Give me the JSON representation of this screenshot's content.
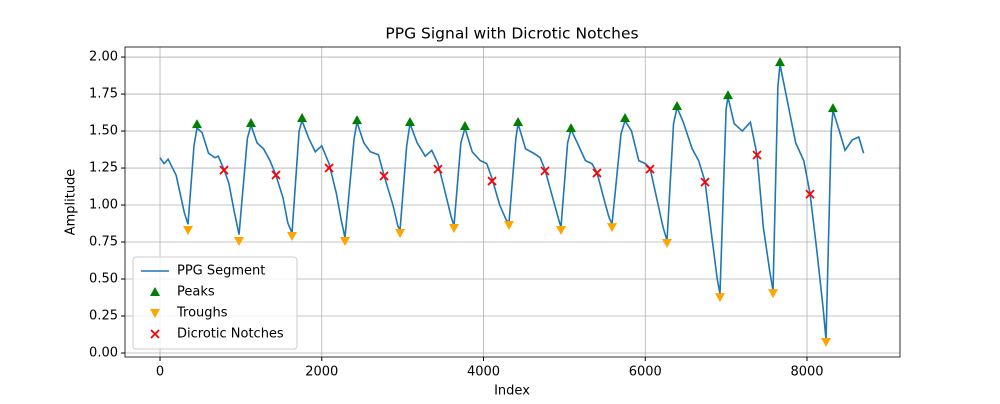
{
  "chart_data": {
    "type": "line",
    "title": "PPG Signal with Dicrotic Notches",
    "x_label": "Index",
    "y_label": "Amplitude",
    "xlim": [
      -433,
      9150
    ],
    "ylim": [
      -0.027,
      2.068
    ],
    "xticks": [
      0,
      2000,
      4000,
      6000,
      8000
    ],
    "yticks": [
      {
        "value": 0,
        "label": "0.00"
      },
      {
        "value": 0.25,
        "label": "0.25"
      },
      {
        "value": 0.5,
        "label": "0.50"
      },
      {
        "value": 0.75,
        "label": "0.75"
      },
      {
        "value": 1,
        "label": "1.00"
      },
      {
        "value": 1.25,
        "label": "1.25"
      },
      {
        "value": 1.5,
        "label": "1.50"
      },
      {
        "value": 1.75,
        "label": "1.75"
      },
      {
        "value": 2,
        "label": "2.00"
      }
    ],
    "grid": true,
    "legend": "lower left",
    "series": [
      {
        "name": "PPG Segment",
        "type": "line",
        "color": "#1f77b4",
        "x": [
          0,
          50,
          100,
          200,
          300,
          346,
          420,
          457,
          520,
          600,
          680,
          720,
          791,
          850,
          920,
          977,
          1080,
          1125,
          1200,
          1280,
          1360,
          1434,
          1520,
          1580,
          1632,
          1720,
          1756,
          1840,
          1920,
          2000,
          2090,
          2180,
          2240,
          2287,
          2400,
          2436,
          2520,
          2600,
          2700,
          2770,
          2880,
          2940,
          2968,
          3050,
          3091,
          3180,
          3280,
          3360,
          3437,
          3520,
          3600,
          3635,
          3720,
          3771,
          3860,
          3960,
          4040,
          4105,
          4200,
          4280,
          4315,
          4400,
          4427,
          4520,
          4620,
          4700,
          4760,
          4840,
          4920,
          4958,
          5040,
          5082,
          5160,
          5260,
          5340,
          5403,
          5480,
          5550,
          5589,
          5700,
          5750,
          5830,
          5920,
          6000,
          6059,
          6140,
          6220,
          6269,
          6350,
          6393,
          6470,
          6580,
          6660,
          6739,
          6820,
          6890,
          6924,
          7000,
          7023,
          7100,
          7200,
          7300,
          7382,
          7460,
          7540,
          7580,
          7640,
          7666,
          7740,
          7860,
          7960,
          8037,
          8120,
          8200,
          8235,
          8300,
          8321,
          8400,
          8470,
          8560,
          8640,
          8700
        ],
        "values": [
          1.32,
          1.28,
          1.31,
          1.2,
          0.95,
          0.87,
          1.4,
          1.52,
          1.49,
          1.35,
          1.32,
          1.33,
          1.24,
          1.15,
          0.95,
          0.8,
          1.45,
          1.54,
          1.42,
          1.38,
          1.3,
          1.2,
          1.05,
          0.88,
          0.81,
          1.5,
          1.57,
          1.45,
          1.36,
          1.4,
          1.28,
          1.08,
          0.9,
          0.78,
          1.45,
          1.56,
          1.42,
          1.36,
          1.34,
          1.2,
          1.0,
          0.86,
          0.83,
          1.4,
          1.55,
          1.42,
          1.33,
          1.37,
          1.28,
          1.1,
          0.92,
          0.86,
          1.42,
          1.52,
          1.36,
          1.3,
          1.28,
          1.18,
          1.0,
          0.9,
          0.88,
          1.45,
          1.55,
          1.38,
          1.35,
          1.32,
          1.24,
          1.08,
          0.92,
          0.85,
          1.42,
          1.51,
          1.42,
          1.3,
          1.28,
          1.22,
          1.06,
          0.92,
          0.87,
          1.48,
          1.57,
          1.5,
          1.3,
          1.28,
          1.25,
          1.05,
          0.85,
          0.76,
          1.55,
          1.66,
          1.56,
          1.38,
          1.3,
          1.16,
          0.8,
          0.5,
          0.4,
          1.65,
          1.73,
          1.55,
          1.5,
          1.56,
          1.34,
          0.85,
          0.55,
          0.42,
          1.8,
          1.95,
          1.75,
          1.42,
          1.3,
          1.08,
          0.7,
          0.3,
          0.09,
          1.5,
          1.64,
          1.5,
          1.37,
          1.44,
          1.46,
          1.35
        ]
      },
      {
        "name": "Peaks",
        "type": "scatter",
        "marker": "triangle-up",
        "color": "green",
        "x": [
          457,
          1125,
          1756,
          2436,
          3091,
          3771,
          4427,
          5082,
          5750,
          6393,
          7023,
          7666,
          8321
        ],
        "values": [
          1.547,
          1.554,
          1.588,
          1.574,
          1.561,
          1.534,
          1.561,
          1.52,
          1.588,
          1.669,
          1.743,
          1.966,
          1.655
        ]
      },
      {
        "name": "Troughs",
        "type": "scatter",
        "marker": "triangle-down",
        "color": "orange",
        "x": [
          346,
          977,
          1632,
          2287,
          2968,
          3635,
          4315,
          4958,
          5589,
          6269,
          6924,
          7580,
          8235
        ],
        "values": [
          0.831,
          0.757,
          0.791,
          0.757,
          0.811,
          0.845,
          0.865,
          0.831,
          0.851,
          0.743,
          0.378,
          0.405,
          0.074
        ]
      },
      {
        "name": "Dicrotic Notches",
        "type": "scatter",
        "marker": "x",
        "color": "red",
        "x": [
          791,
          1434,
          2090,
          2770,
          3437,
          4105,
          4760,
          5403,
          6059,
          6739,
          7382,
          8037
        ],
        "values": [
          1.236,
          1.203,
          1.25,
          1.196,
          1.243,
          1.162,
          1.23,
          1.216,
          1.243,
          1.155,
          1.338,
          1.074
        ]
      }
    ]
  }
}
